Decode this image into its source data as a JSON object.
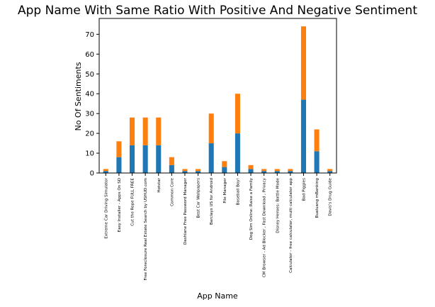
{
  "chart_data": {
    "type": "bar",
    "stacked": true,
    "title": "App Name With Same Ratio With Positive And Negative Sentiment",
    "xlabel": "App Name",
    "ylabel": "No Of Sentiments",
    "ylim": [
      0,
      78
    ],
    "yticks": [
      0,
      10,
      20,
      30,
      40,
      50,
      60,
      70
    ],
    "grid": false,
    "categories": [
      "Extreme Car Driving Simulator",
      "Easy Installer - Apps On SD",
      "Cut the Rope FULL FREE",
      "Free Foreclosure Real Estate Search by USHUD.com",
      "Hotstar",
      "Common Core",
      "Dashlane Free Password Manager",
      "Best Car Wallpapers",
      "Barclays US for Android",
      "File Manager",
      "Baseball Boy!",
      "Dog Sim Online: Raise a Family",
      "CM Browser - Ad Blocker , Fast Download , Privacy",
      "Disney Heroes: Battle Mode",
      "Calculator - free calculator, multi calculator app",
      "Bad Piggies",
      "Bualuang mBanking",
      "Davis's Drug Guide"
    ],
    "series": [
      {
        "color": "#1f77b4",
        "values": [
          1,
          8,
          14,
          14,
          14,
          4,
          1,
          1,
          15,
          3,
          20,
          2,
          1,
          1,
          1,
          37,
          11,
          1
        ]
      },
      {
        "color": "#ff7f0e",
        "values": [
          1,
          8,
          14,
          14,
          14,
          4,
          1,
          1,
          15,
          3,
          20,
          2,
          1,
          1,
          1,
          37,
          11,
          1
        ]
      }
    ]
  }
}
